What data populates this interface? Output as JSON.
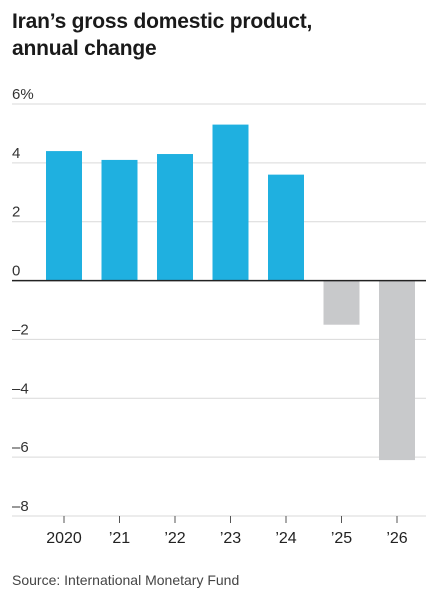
{
  "header": {
    "title_line1": "Iran’s gross domestic product,",
    "title_line2": "annual change"
  },
  "footer": {
    "source": "Source: International Monetary Fund"
  },
  "colors": {
    "positive": "#1fb0e0",
    "negative": "#c8c9cb",
    "grid": "#d9d9d9",
    "zero_line": "#222222",
    "text": "#333333"
  },
  "chart_data": {
    "type": "bar",
    "title": "Iran’s gross domestic product, annual change",
    "xlabel": "",
    "ylabel": "",
    "categories": [
      "2020",
      "’21",
      "’22",
      "’23",
      "’24",
      "’25",
      "’26"
    ],
    "values": [
      4.4,
      4.1,
      4.3,
      5.3,
      3.6,
      -1.5,
      -6.1
    ],
    "ylim": [
      -8,
      6
    ],
    "yticks": [
      {
        "value": 6,
        "label": "6%"
      },
      {
        "value": 4,
        "label": "4"
      },
      {
        "value": 2,
        "label": "2"
      },
      {
        "value": 0,
        "label": "0"
      },
      {
        "value": -2,
        "label": "–2"
      },
      {
        "value": -4,
        "label": "–4"
      },
      {
        "value": -6,
        "label": "–6"
      },
      {
        "value": -8,
        "label": "–8"
      }
    ],
    "grid": true,
    "legend": "none"
  }
}
